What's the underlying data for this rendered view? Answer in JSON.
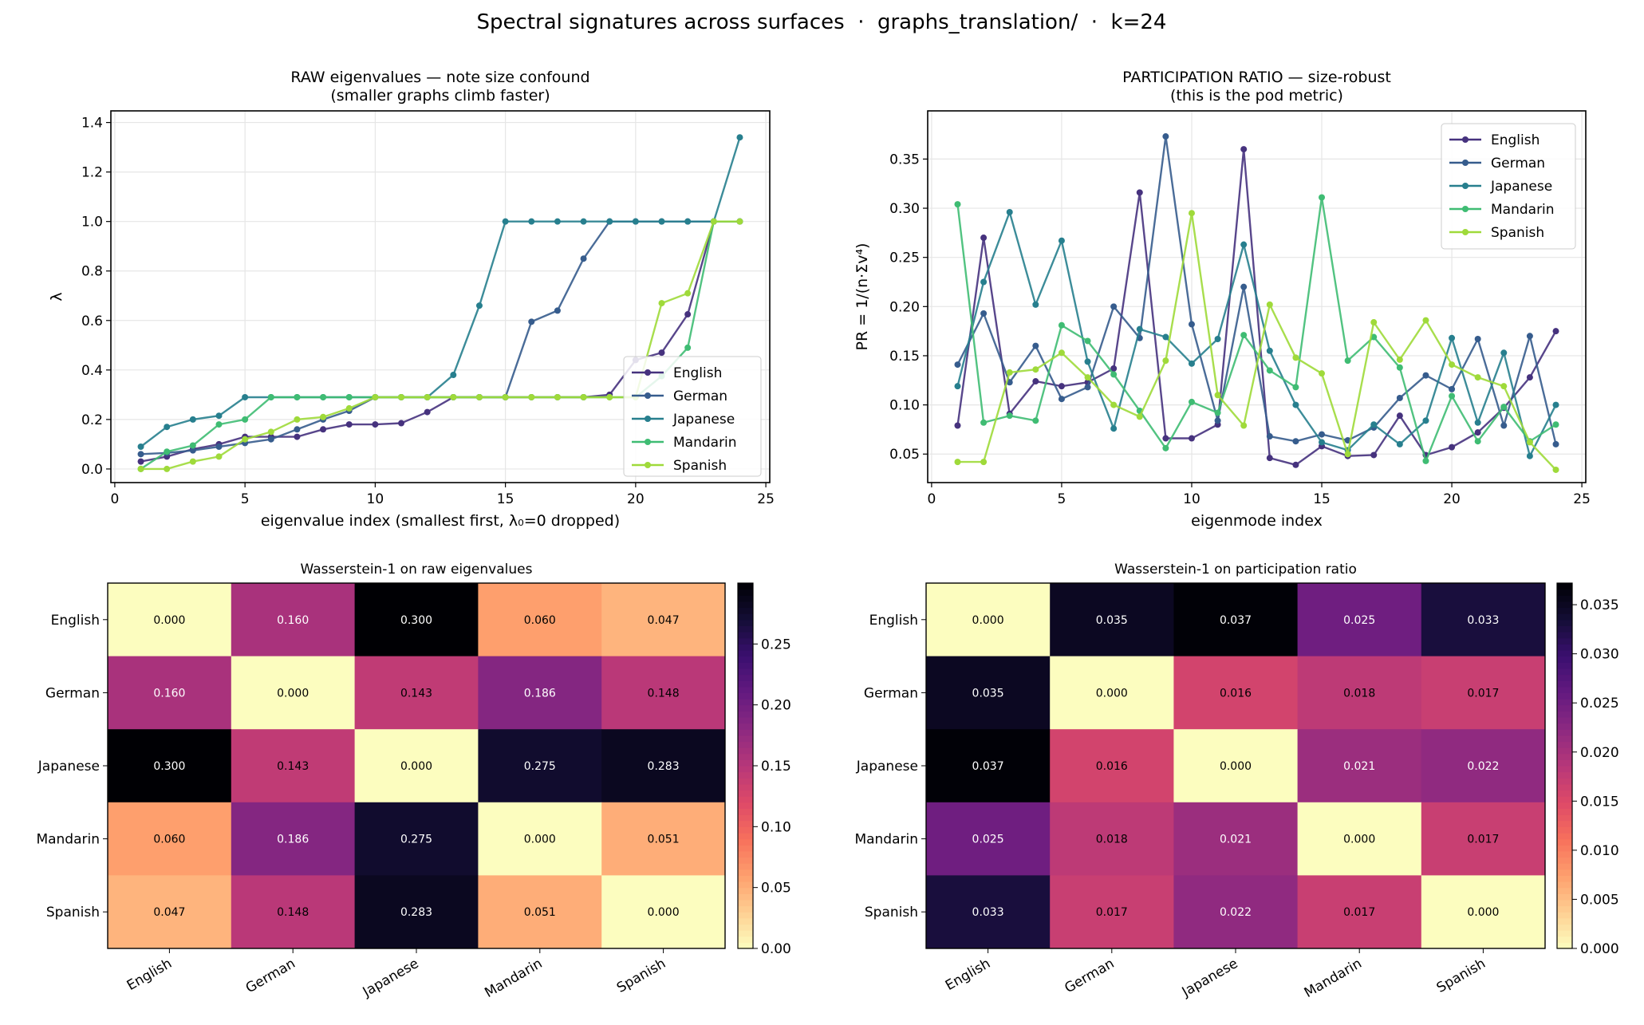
{
  "suptitle": "Spectral signatures across surfaces  ·  graphs_translation/  ·  k=24",
  "chart_data": [
    {
      "type": "line",
      "title": "RAW eigenvalues — note size confound\n(smaller graphs climb faster)",
      "xlabel": "eigenvalue index (smallest first, λ₀=0 dropped)",
      "ylabel": "λ",
      "xlim": [
        -0.15,
        25.15
      ],
      "ylim": [
        -0.055,
        1.447
      ],
      "xticks": [
        0,
        5,
        10,
        15,
        20,
        25
      ],
      "yticks": [
        0.0,
        0.2,
        0.4,
        0.6,
        0.8,
        1.0,
        1.2,
        1.4
      ],
      "ytick_decimals": 1,
      "grid": true,
      "legend": "lower-right",
      "x": [
        1,
        2,
        3,
        4,
        5,
        6,
        7,
        8,
        9,
        10,
        11,
        12,
        13,
        14,
        15,
        16,
        17,
        18,
        19,
        20,
        21,
        22,
        23,
        24
      ],
      "series": [
        {
          "name": "English",
          "color": "#46327e",
          "values": [
            0.03,
            0.05,
            0.08,
            0.1,
            0.13,
            0.13,
            0.13,
            0.16,
            0.18,
            0.18,
            0.185,
            0.23,
            0.29,
            0.29,
            0.29,
            0.29,
            0.29,
            0.29,
            0.3,
            0.44,
            0.47,
            0.625,
            1.0,
            1.0
          ]
        },
        {
          "name": "German",
          "color": "#365c8d",
          "values": [
            0.06,
            0.065,
            0.075,
            0.09,
            0.105,
            0.12,
            0.16,
            0.2,
            0.235,
            0.29,
            0.29,
            0.29,
            0.29,
            0.29,
            0.29,
            0.595,
            0.64,
            0.85,
            1.0,
            1.0,
            1.0,
            1.0,
            1.0,
            1.0
          ]
        },
        {
          "name": "Japanese",
          "color": "#277f8e",
          "values": [
            0.09,
            0.17,
            0.2,
            0.215,
            0.29,
            0.29,
            0.29,
            0.29,
            0.29,
            0.29,
            0.29,
            0.29,
            0.38,
            0.66,
            1.0,
            1.0,
            1.0,
            1.0,
            1.0,
            1.0,
            1.0,
            1.0,
            1.0,
            1.34
          ]
        },
        {
          "name": "Mandarin",
          "color": "#3fbc73",
          "values": [
            0.0,
            0.07,
            0.095,
            0.18,
            0.2,
            0.29,
            0.29,
            0.29,
            0.29,
            0.29,
            0.29,
            0.29,
            0.29,
            0.29,
            0.29,
            0.29,
            0.29,
            0.29,
            0.29,
            0.29,
            0.375,
            0.49,
            1.0,
            1.0
          ]
        },
        {
          "name": "Spanish",
          "color": "#9fda3a",
          "values": [
            0.0,
            0.0,
            0.03,
            0.05,
            0.12,
            0.15,
            0.2,
            0.21,
            0.245,
            0.29,
            0.29,
            0.29,
            0.29,
            0.29,
            0.29,
            0.29,
            0.29,
            0.29,
            0.29,
            0.29,
            0.67,
            0.71,
            1.0,
            1.0
          ]
        }
      ]
    },
    {
      "type": "line",
      "title": "PARTICIPATION RATIO — size-robust\n(this is the pod metric)",
      "xlabel": "eigenmode index",
      "ylabel": "PR = 1/(n·Σv⁴)",
      "xlim": [
        -0.15,
        25.15
      ],
      "ylim": [
        0.021,
        0.399
      ],
      "xticks": [
        0,
        5,
        10,
        15,
        20,
        25
      ],
      "yticks": [
        0.05,
        0.1,
        0.15,
        0.2,
        0.25,
        0.3,
        0.35
      ],
      "ytick_decimals": 2,
      "grid": true,
      "legend": "upper-right",
      "x": [
        1,
        2,
        3,
        4,
        5,
        6,
        7,
        8,
        9,
        10,
        11,
        12,
        13,
        14,
        15,
        16,
        17,
        18,
        19,
        20,
        21,
        22,
        23,
        24
      ],
      "series": [
        {
          "name": "English",
          "color": "#46327e",
          "values": [
            0.079,
            0.27,
            0.091,
            0.124,
            0.119,
            0.123,
            0.137,
            0.316,
            0.066,
            0.066,
            0.08,
            0.36,
            0.046,
            0.039,
            0.058,
            0.048,
            0.049,
            0.089,
            0.049,
            0.057,
            0.072,
            0.097,
            0.128,
            0.175
          ]
        },
        {
          "name": "German",
          "color": "#365c8d",
          "values": [
            0.141,
            0.193,
            0.123,
            0.16,
            0.106,
            0.118,
            0.2,
            0.168,
            0.373,
            0.182,
            0.084,
            0.22,
            0.068,
            0.063,
            0.07,
            0.064,
            0.077,
            0.107,
            0.13,
            0.116,
            0.167,
            0.079,
            0.17,
            0.06
          ]
        },
        {
          "name": "Japanese",
          "color": "#277f8e",
          "values": [
            0.119,
            0.225,
            0.296,
            0.202,
            0.267,
            0.144,
            0.076,
            0.177,
            0.169,
            0.142,
            0.167,
            0.263,
            0.155,
            0.1,
            0.062,
            0.054,
            0.08,
            0.06,
            0.084,
            0.168,
            0.082,
            0.153,
            0.048,
            0.1
          ]
        },
        {
          "name": "Mandarin",
          "color": "#3fbc73",
          "values": [
            0.304,
            0.082,
            0.089,
            0.084,
            0.181,
            0.165,
            0.131,
            0.094,
            0.056,
            0.103,
            0.092,
            0.171,
            0.135,
            0.118,
            0.311,
            0.145,
            0.169,
            0.138,
            0.043,
            0.109,
            0.063,
            0.098,
            0.063,
            0.08
          ]
        },
        {
          "name": "Spanish",
          "color": "#9fda3a",
          "values": [
            0.042,
            0.042,
            0.133,
            0.136,
            0.153,
            0.128,
            0.1,
            0.088,
            0.145,
            0.295,
            0.11,
            0.079,
            0.202,
            0.148,
            0.132,
            0.05,
            0.184,
            0.146,
            0.186,
            0.141,
            0.128,
            0.119,
            0.062,
            0.034
          ]
        }
      ]
    },
    {
      "type": "heatmap",
      "title": "Wasserstein-1 on raw eigenvalues",
      "colormap": "magma_r",
      "vmin": 0.0,
      "vmax": 0.3,
      "colorbar_ticks": [
        0.0,
        0.05,
        0.1,
        0.15,
        0.2,
        0.25
      ],
      "labels": [
        "English",
        "German",
        "Japanese",
        "Mandarin",
        "Spanish"
      ],
      "values": [
        [
          0.0,
          0.16,
          0.3,
          0.06,
          0.047
        ],
        [
          0.16,
          0.0,
          0.143,
          0.186,
          0.148
        ],
        [
          0.3,
          0.143,
          0.0,
          0.275,
          0.283
        ],
        [
          0.06,
          0.186,
          0.275,
          0.0,
          0.051
        ],
        [
          0.047,
          0.148,
          0.283,
          0.051,
          0.0
        ]
      ]
    },
    {
      "type": "heatmap",
      "title": "Wasserstein-1 on participation ratio",
      "colormap": "magma_r",
      "vmin": 0.0,
      "vmax": 0.0372,
      "colorbar_ticks": [
        0.0,
        0.005,
        0.01,
        0.015,
        0.02,
        0.025,
        0.03,
        0.035
      ],
      "labels": [
        "English",
        "German",
        "Japanese",
        "Mandarin",
        "Spanish"
      ],
      "values": [
        [
          0.0,
          0.035,
          0.037,
          0.025,
          0.033
        ],
        [
          0.035,
          0.0,
          0.016,
          0.018,
          0.017
        ],
        [
          0.037,
          0.016,
          0.0,
          0.021,
          0.022
        ],
        [
          0.025,
          0.018,
          0.021,
          0.0,
          0.017
        ],
        [
          0.033,
          0.017,
          0.022,
          0.017,
          0.0
        ]
      ]
    }
  ]
}
